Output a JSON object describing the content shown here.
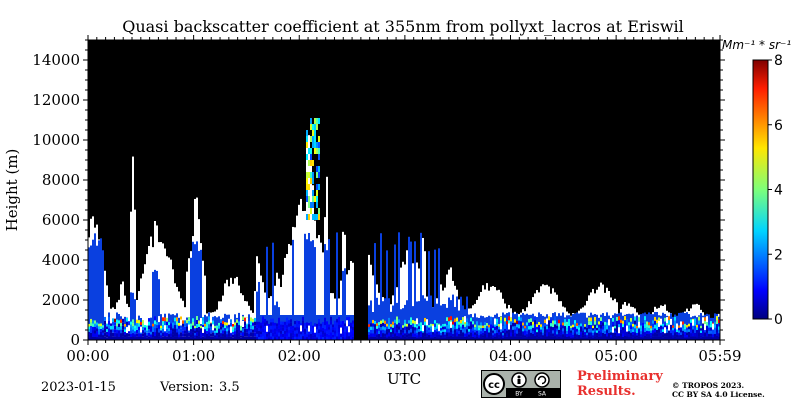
{
  "chart_data": {
    "type": "heatmap",
    "title": "Quasi backscatter coefficient at 355nm from pollyxt_lacros at Eriswil",
    "xlabel": "UTC",
    "ylabel": "Height (m)",
    "xlim": [
      "00:00",
      "05:59"
    ],
    "ylim": [
      0,
      15000
    ],
    "x_ticks": [
      "00:00",
      "01:00",
      "02:00",
      "03:00",
      "04:00",
      "05:00",
      "05:59"
    ],
    "y_ticks": [
      0,
      2000,
      4000,
      6000,
      8000,
      10000,
      12000,
      14000
    ],
    "colorbar": {
      "label": "Mm⁻¹ * sr⁻¹",
      "range": [
        0,
        8
      ],
      "ticks": [
        0,
        2,
        4,
        6,
        8
      ],
      "colormap": "jet",
      "background_no_signal": "#000000",
      "masked_cloud": "#ffffff"
    },
    "features": [
      {
        "type": "no-data gap",
        "x_start": "02:31",
        "x_end": "02:39"
      },
      {
        "type": "boundary layer aerosol",
        "height_range": [
          0,
          1200
        ],
        "value_range": [
          0.5,
          7
        ]
      },
      {
        "type": "cirrus / cloud column",
        "x": "02:06",
        "height_range": [
          1500,
          11200
        ]
      },
      {
        "type": "cloud column",
        "x": "01:00",
        "height_range": [
          1200,
          7200
        ]
      }
    ]
  },
  "footer": {
    "date": "2023-01-15",
    "version_label": "Version:",
    "version_value": "3.5",
    "license_badge": "CC BY SA",
    "badge_by": "BY",
    "badge_sa": "SA",
    "preliminary_line1": "Preliminary",
    "preliminary_line2": "Results.",
    "copyright_line1": "© TROPOS 2023.",
    "copyright_line2": "CC BY SA 4.0 License."
  }
}
